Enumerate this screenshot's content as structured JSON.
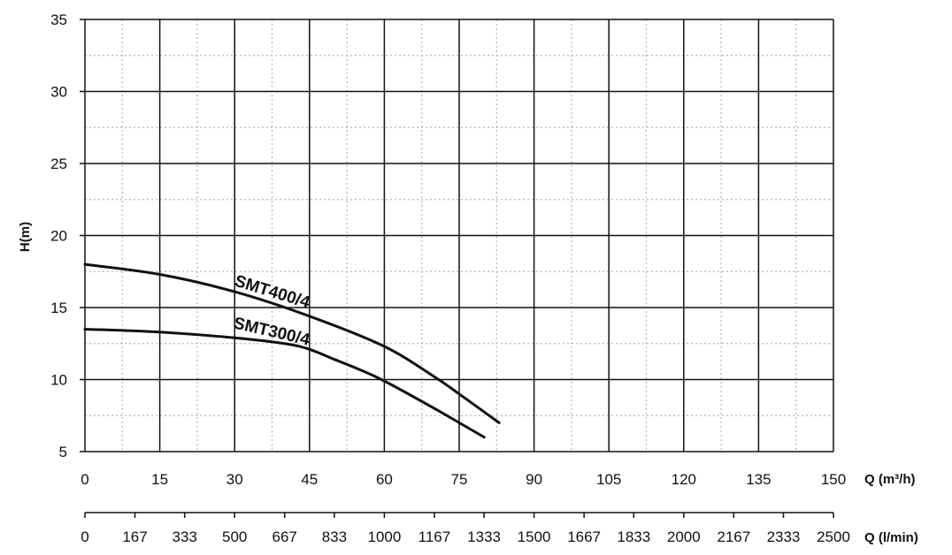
{
  "chart_data": {
    "type": "line",
    "title": "",
    "ylabel": "H(m)",
    "xlabel": "Q (m³/h)",
    "secondary_xlabel": "Q (l/min)",
    "ylim": [
      5,
      35
    ],
    "xlim": [
      0,
      150
    ],
    "y_ticks": [
      "5",
      "10",
      "15",
      "20",
      "25",
      "30",
      "35"
    ],
    "y_tick_values": [
      5,
      10,
      15,
      20,
      25,
      30,
      35
    ],
    "x_ticks": [
      "0",
      "15",
      "30",
      "45",
      "60",
      "75",
      "90",
      "105",
      "120",
      "135",
      "150"
    ],
    "x_tick_values": [
      0,
      15,
      30,
      45,
      60,
      75,
      90,
      105,
      120,
      135,
      150
    ],
    "secondary_x_ticks": [
      "0",
      "167",
      "333",
      "500",
      "667",
      "833",
      "1000",
      "1167",
      "1333",
      "1500",
      "1667",
      "1833",
      "2000",
      "2167",
      "2333",
      "2500"
    ],
    "secondary_x_tick_values": [
      0,
      167,
      333,
      500,
      667,
      833,
      1000,
      1167,
      1333,
      1500,
      1667,
      1833,
      2000,
      2167,
      2333,
      2500
    ],
    "secondary_xlim": [
      0,
      2500
    ],
    "grid": {
      "major": true,
      "minor": true,
      "minor_style": "dotted"
    },
    "series": [
      {
        "name": "SMT400/4",
        "x": [
          0,
          15,
          30,
          45,
          60,
          70,
          75,
          83
        ],
        "y": [
          18,
          17.3,
          16.1,
          14.4,
          12.3,
          10.2,
          9.0,
          7.0
        ]
      },
      {
        "name": "SMT300/4",
        "x": [
          0,
          15,
          30,
          40,
          45,
          50,
          55,
          60,
          70,
          80
        ],
        "y": [
          13.5,
          13.3,
          12.9,
          12.5,
          12.1,
          11.4,
          10.7,
          9.9,
          8.0,
          6.0
        ]
      }
    ]
  },
  "colors": {
    "curve": "#111111",
    "major_grid": "#111111",
    "minor_grid": "#b5b5b5",
    "background": "#ffffff"
  }
}
